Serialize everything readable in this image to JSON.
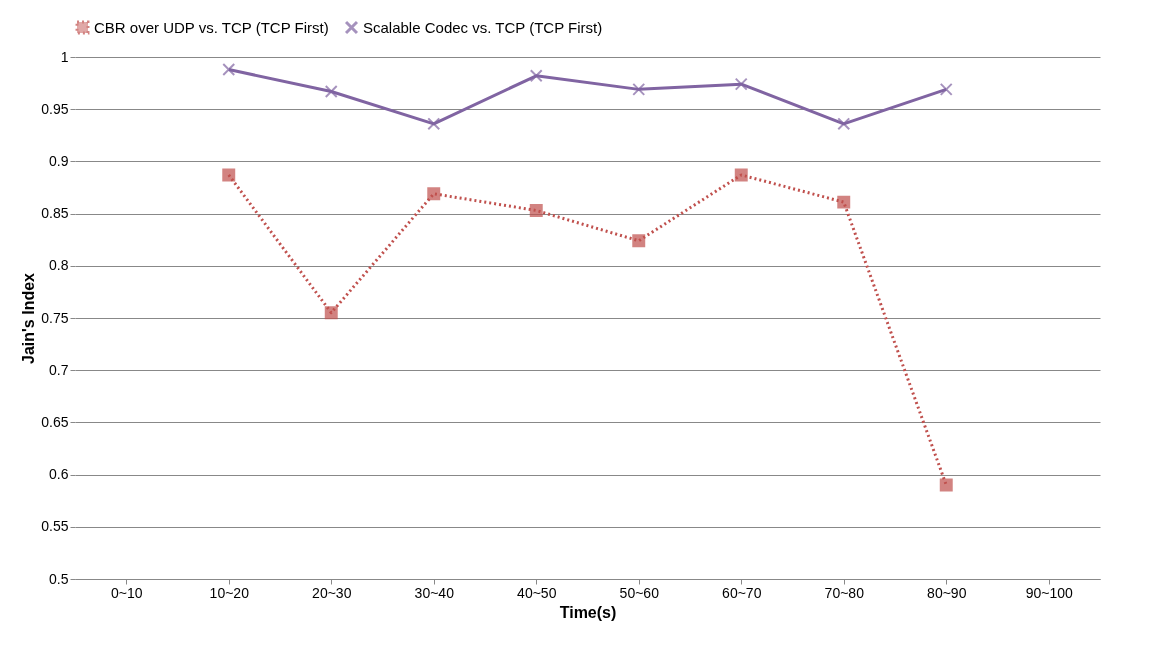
{
  "chart_data": {
    "type": "line",
    "xlabel": "Time(s)",
    "ylabel": "Jain's Index",
    "categories": [
      "0~10",
      "10~20",
      "20~30",
      "30~40",
      "40~50",
      "50~60",
      "60~70",
      "70~80",
      "80~90",
      "90~100"
    ],
    "series": [
      {
        "name": "CBR over UDP vs. TCP (TCP First)",
        "color": "#c0504d",
        "marker": "square",
        "line_style": "dotted",
        "values": [
          null,
          0.887,
          0.755,
          0.869,
          0.853,
          0.824,
          0.887,
          0.861,
          0.59,
          null
        ]
      },
      {
        "name": "Scalable Codec vs. TCP (TCP First)",
        "color": "#8064a2",
        "marker": "cross",
        "line_style": "solid",
        "values": [
          null,
          0.988,
          0.967,
          0.936,
          0.982,
          0.969,
          0.974,
          0.936,
          0.969,
          null
        ]
      }
    ],
    "ylim": [
      0.5,
      1
    ],
    "yticks": [
      0.5,
      0.55,
      0.6,
      0.65,
      0.7,
      0.75,
      0.8,
      0.85,
      0.9,
      0.95,
      1
    ],
    "grid": "y",
    "legend": "top"
  }
}
